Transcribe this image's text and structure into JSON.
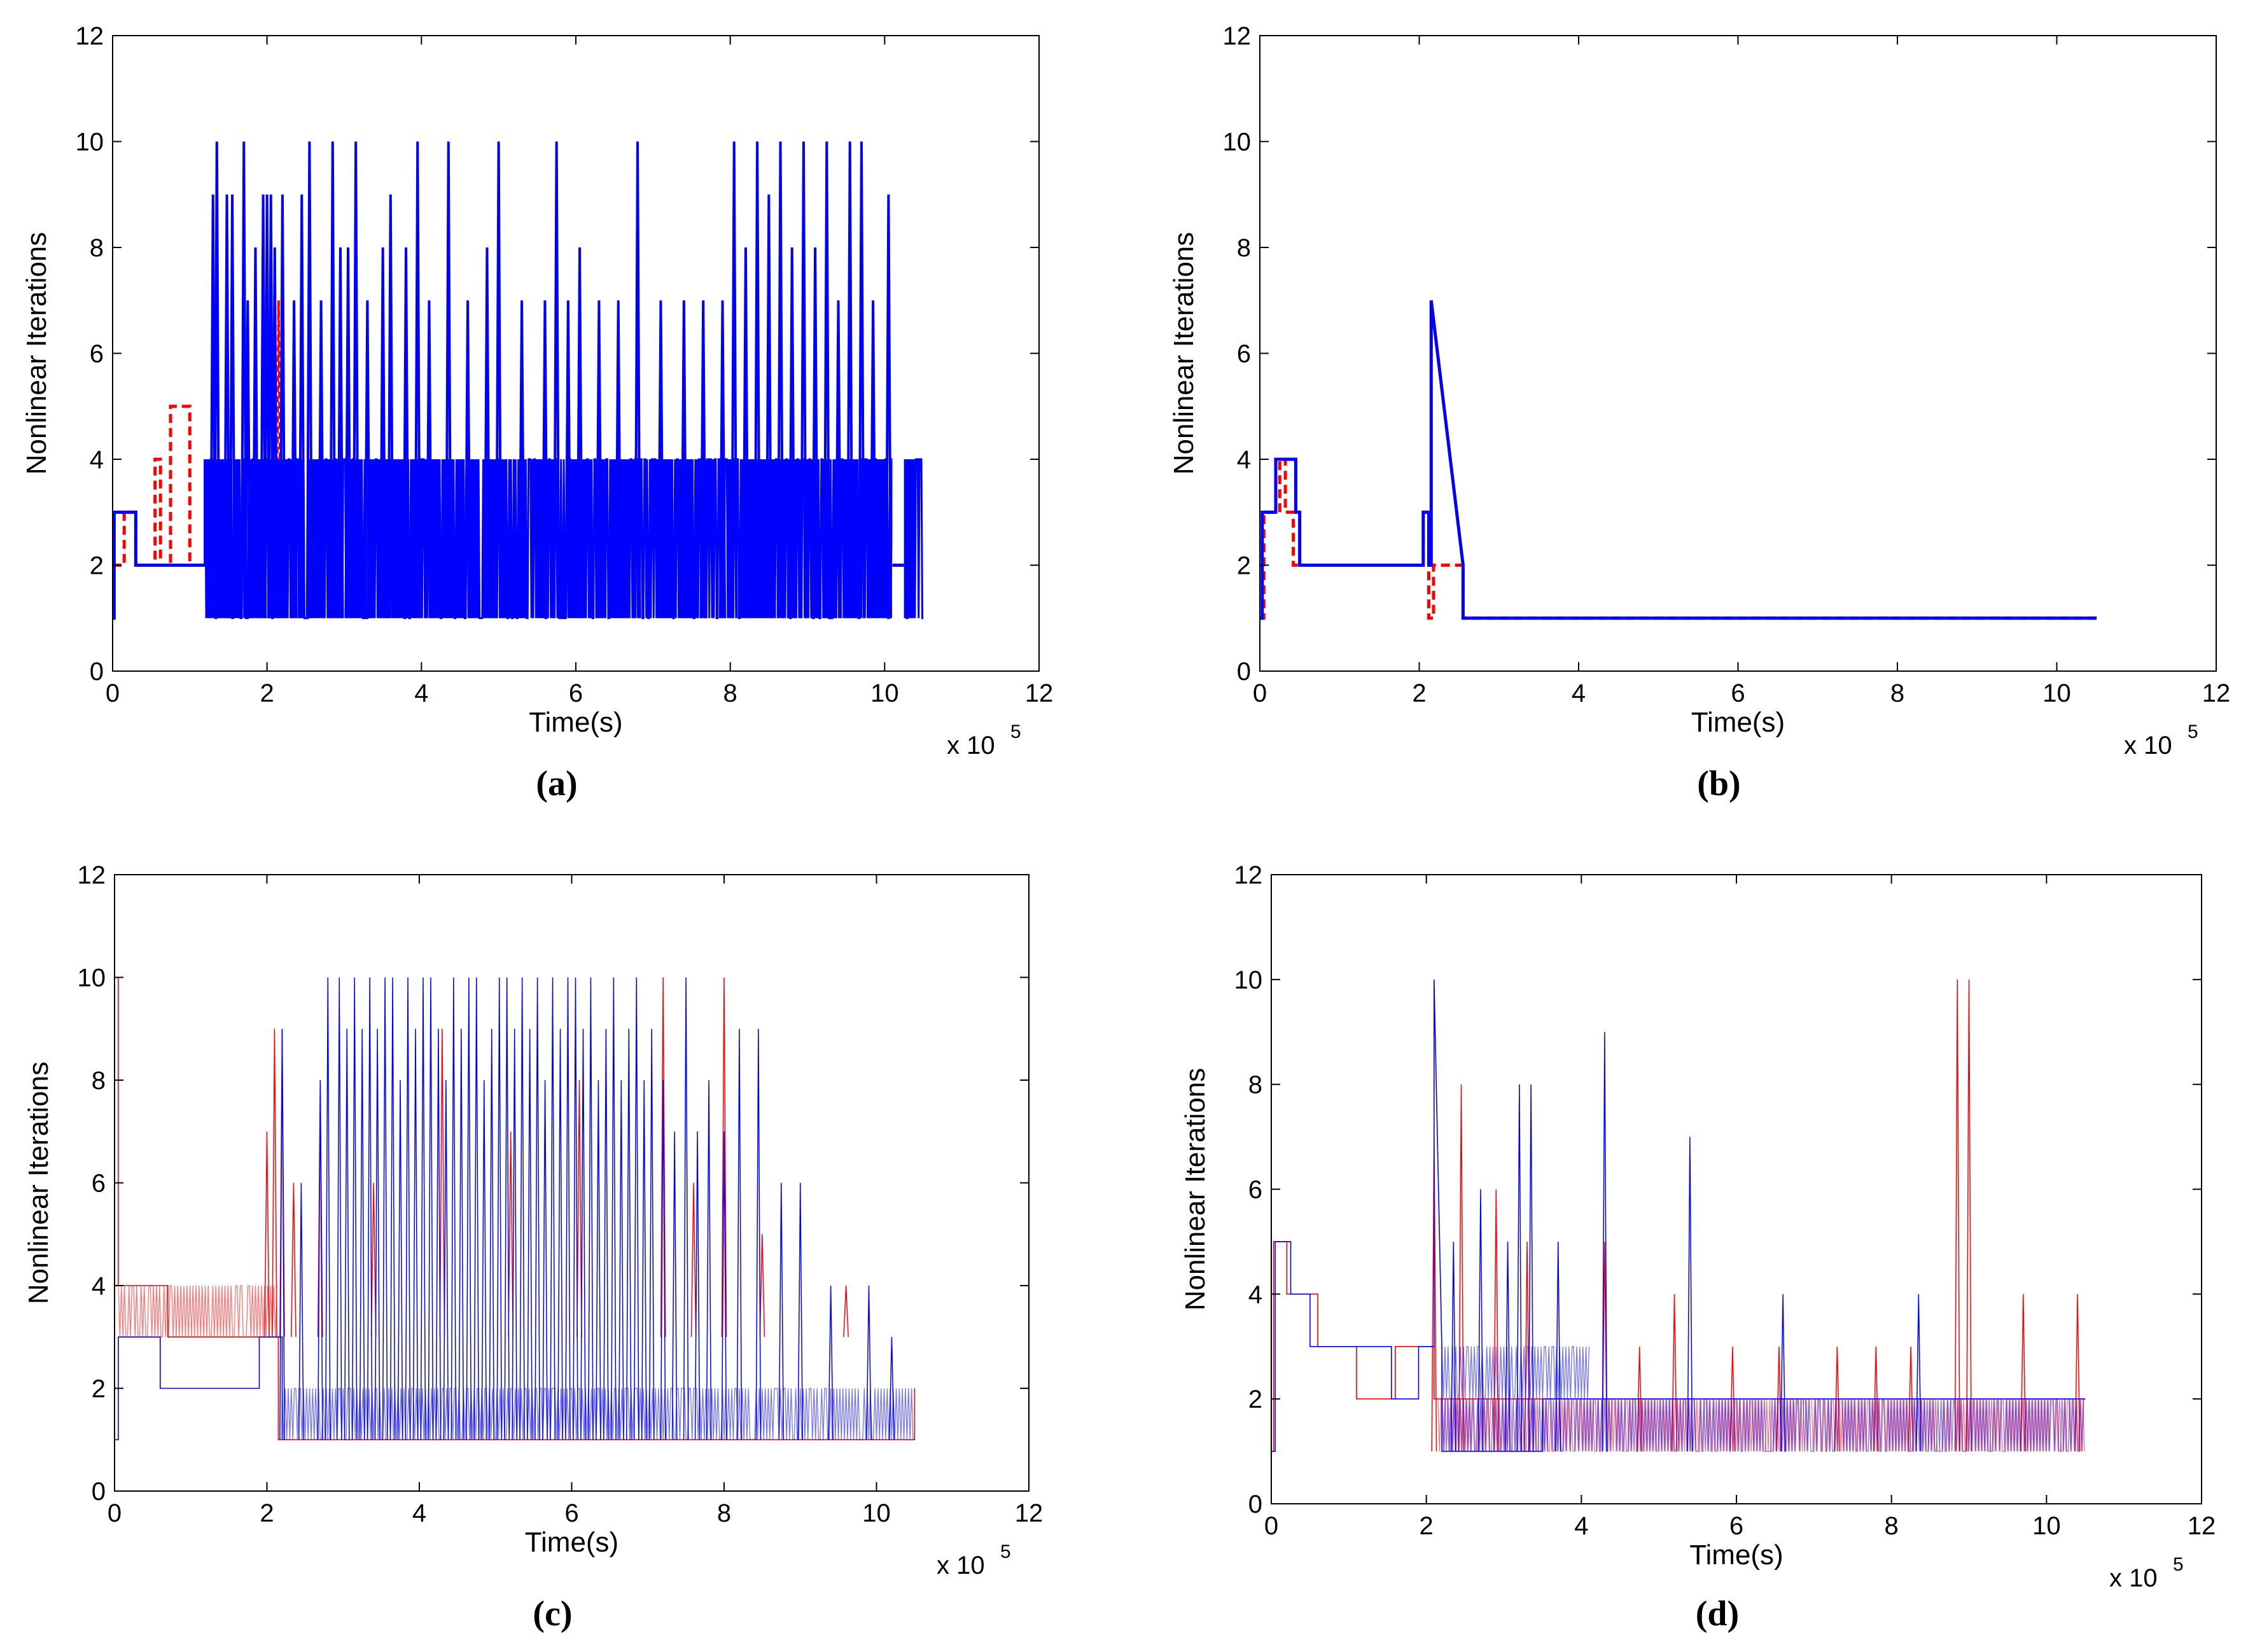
{
  "figure": {
    "background": "#ffffff"
  },
  "panels": [
    {
      "id": "a",
      "caption": "(a)"
    },
    {
      "id": "b",
      "caption": "(b)"
    },
    {
      "id": "c",
      "caption": "(c)"
    },
    {
      "id": "d",
      "caption": "(d)"
    }
  ],
  "chart_data": [
    {
      "panel": "a",
      "type": "line",
      "caption": "(a)",
      "xlabel": "Time(s)",
      "ylabel": "Nonlinear Iterations",
      "x_multiplier": "x 10^5",
      "x_multiplier_base": "x 10",
      "x_multiplier_exp": "5",
      "xlim": [
        0,
        12
      ],
      "ylim": [
        0,
        12
      ],
      "xticks": [
        0,
        2,
        4,
        6,
        8,
        10,
        12
      ],
      "yticks": [
        0,
        2,
        4,
        6,
        8,
        10,
        12
      ],
      "grid": false,
      "series": [
        {
          "name": "red dashed",
          "color": "#ff0000",
          "style": "dashed",
          "width": "thick",
          "x": [
            0,
            0.15,
            0.15,
            0.3,
            0.3,
            0.55,
            0.55,
            0.62,
            0.62,
            0.75,
            0.75,
            1.0,
            1.0,
            1.3
          ],
          "y": [
            2,
            2,
            3,
            3,
            2,
            2,
            4,
            4,
            2,
            2,
            5,
            5,
            2,
            2
          ],
          "spikes": {
            "x": [
              2.15
            ],
            "y": [
              7
            ]
          }
        },
        {
          "name": "blue solid",
          "color": "#0000ff",
          "style": "solid",
          "width": "thick",
          "x": [
            0,
            0.02,
            0.02,
            0.3,
            0.3,
            1.2,
            1.2
          ],
          "y": [
            1,
            1,
            3,
            3,
            2,
            2,
            4
          ],
          "band": {
            "x_start": 1.2,
            "x_end": 10.5,
            "low": 1,
            "high": 4
          },
          "gaps": [
            {
              "x_start": 10.1,
              "x_end": 10.25,
              "y": 2
            }
          ],
          "spikes": {
            "x": [
              1.3,
              1.35,
              1.48,
              1.55,
              1.7,
              1.75,
              1.85,
              1.95,
              2.0,
              2.05,
              2.1,
              2.2,
              2.35,
              2.45,
              2.55,
              2.7,
              2.85,
              2.95,
              3.05,
              3.15,
              3.3,
              3.5,
              3.6,
              3.8,
              3.95,
              4.1,
              4.35,
              4.6,
              4.85,
              5.0,
              5.3,
              5.6,
              5.75,
              5.9,
              6.05,
              6.3,
              6.55,
              6.8,
              7.1,
              7.4,
              7.65,
              7.9,
              8.05,
              8.2,
              8.35,
              8.5,
              8.65,
              8.8,
              8.95,
              9.1,
              9.25,
              9.4,
              9.55,
              9.7,
              9.85,
              10.05,
              10.3
            ],
            "y": [
              9,
              10,
              9,
              9,
              10,
              7,
              8,
              9,
              9,
              9,
              8,
              9,
              7,
              9,
              10,
              7,
              10,
              8,
              8,
              10,
              7,
              8,
              9,
              8,
              10,
              7,
              10,
              7,
              8,
              10,
              7,
              7,
              10,
              7,
              8,
              7,
              7,
              10,
              7,
              7,
              7,
              7,
              10,
              8,
              10,
              9,
              10,
              8,
              10,
              8,
              10,
              7,
              10,
              10,
              7,
              9,
              4
            ]
          }
        }
      ]
    },
    {
      "panel": "b",
      "type": "line",
      "caption": "(b)",
      "xlabel": "Time(s)",
      "ylabel": "Nonlinear Iterations",
      "x_multiplier": "x 10^5",
      "x_multiplier_base": "x 10",
      "x_multiplier_exp": "5",
      "xlim": [
        0,
        12
      ],
      "ylim": [
        0,
        12
      ],
      "xticks": [
        0,
        2,
        4,
        6,
        8,
        10,
        12
      ],
      "yticks": [
        0,
        2,
        4,
        6,
        8,
        10,
        12
      ],
      "grid": false,
      "series": [
        {
          "name": "red dashed",
          "color": "#ff0000",
          "style": "dashed",
          "width": "thick",
          "x": [
            0,
            0.05,
            0.05,
            0.25,
            0.25,
            0.32,
            0.32,
            0.42,
            0.42,
            0.5,
            0.5,
            2.05,
            2.05,
            2.12,
            2.12,
            2.18,
            2.18,
            2.55,
            2.55,
            10.5
          ],
          "y": [
            1,
            1,
            3,
            3,
            4,
            4,
            3,
            3,
            2,
            2,
            2,
            2,
            3,
            3,
            1,
            1,
            2,
            2,
            1,
            1
          ]
        },
        {
          "name": "blue solid",
          "color": "#0000ff",
          "style": "solid",
          "width": "thick",
          "x": [
            0,
            0.03,
            0.03,
            0.2,
            0.2,
            0.27,
            0.27,
            0.45,
            0.45,
            0.5,
            0.5,
            2.05,
            2.05,
            2.12,
            2.12,
            2.15,
            2.15,
            2.55,
            2.55,
            10.5
          ],
          "y": [
            1,
            1,
            3,
            3,
            4,
            4,
            4,
            4,
            3,
            3,
            2,
            2,
            3,
            3,
            2,
            2,
            7,
            2,
            1,
            1
          ]
        }
      ]
    },
    {
      "panel": "c",
      "type": "line",
      "caption": "(c)",
      "xlabel": "Time(s)",
      "ylabel": "Nonlinear Iterations",
      "x_multiplier": "x 10^5",
      "x_multiplier_base": "x 10",
      "x_multiplier_exp": "5",
      "xlim": [
        0,
        12
      ],
      "ylim": [
        0,
        12
      ],
      "xticks": [
        0,
        2,
        4,
        6,
        8,
        10,
        12
      ],
      "yticks": [
        0,
        2,
        4,
        6,
        8,
        10,
        12
      ],
      "grid": false,
      "series": [
        {
          "name": "red thin",
          "color": "#ff0000",
          "style": "solid",
          "width": "thin",
          "x": [
            0,
            0.05,
            0.05,
            0.7,
            0.7,
            2.15,
            2.15,
            10.5,
            10.5
          ],
          "y": [
            10,
            10,
            4,
            4,
            3,
            3,
            1,
            1,
            2
          ],
          "band": {
            "x_start": 0.05,
            "x_end": 2.15,
            "low": 3,
            "high": 4
          },
          "spikes": {
            "x": [
              2.0,
              2.1,
              2.2,
              2.35,
              2.7,
              3.4,
              4.3,
              5.2,
              6.1,
              7.2,
              7.6,
              8.0,
              8.5,
              9.6
            ],
            "y": [
              7,
              9,
              9,
              6,
              8,
              6,
              9,
              7,
              8,
              10,
              6,
              10,
              5,
              4
            ]
          }
        },
        {
          "name": "blue thin",
          "color": "#0000ff",
          "style": "solid",
          "width": "thin",
          "x": [
            0,
            0.05,
            0.05,
            0.6,
            0.6,
            1.9,
            1.9,
            2.2,
            2.2
          ],
          "y": [
            1,
            1,
            3,
            3,
            2,
            2,
            3,
            3,
            1
          ],
          "band": {
            "x_start": 2.2,
            "x_end": 10.5,
            "low": 1,
            "high": 2
          },
          "spikes": {
            "x": [
              2.2,
              2.45,
              2.7,
              2.8,
              2.95,
              3.05,
              3.15,
              3.25,
              3.35,
              3.45,
              3.55,
              3.65,
              3.75,
              3.85,
              3.95,
              4.05,
              4.15,
              4.25,
              4.35,
              4.45,
              4.55,
              4.65,
              4.75,
              4.85,
              4.95,
              5.05,
              5.15,
              5.25,
              5.35,
              5.45,
              5.55,
              5.65,
              5.75,
              5.85,
              5.95,
              6.05,
              6.15,
              6.25,
              6.35,
              6.45,
              6.55,
              6.65,
              6.75,
              6.85,
              6.95,
              7.05,
              7.2,
              7.35,
              7.5,
              7.65,
              7.8,
              8.0,
              8.2,
              8.45,
              8.75,
              9.0,
              9.4,
              9.9,
              10.2
            ],
            "y": [
              9,
              6,
              8,
              10,
              10,
              9,
              10,
              9,
              10,
              9,
              10,
              10,
              8,
              10,
              9,
              10,
              10,
              9,
              8,
              10,
              9,
              10,
              10,
              8,
              9,
              10,
              10,
              9,
              10,
              9,
              10,
              8,
              10,
              9,
              10,
              10,
              9,
              10,
              8,
              9,
              10,
              8,
              9,
              10,
              8,
              9,
              8,
              7,
              10,
              7,
              8,
              7,
              9,
              9,
              6,
              6,
              4,
              4,
              3
            ]
          }
        }
      ]
    },
    {
      "panel": "d",
      "type": "line",
      "caption": "(d)",
      "xlabel": "Time(s)",
      "ylabel": "Nonlinear Iterations",
      "x_multiplier": "x 10^5",
      "x_multiplier_base": "x 10",
      "x_multiplier_exp": "5",
      "xlim": [
        0,
        12
      ],
      "ylim": [
        0,
        12
      ],
      "xticks": [
        0,
        2,
        4,
        6,
        8,
        10,
        12
      ],
      "yticks": [
        0,
        2,
        4,
        6,
        8,
        10,
        12
      ],
      "grid": false,
      "series": [
        {
          "name": "red thin",
          "color": "#ff0000",
          "style": "solid",
          "width": "thin",
          "x": [
            0,
            0.03,
            0.03,
            0.2,
            0.2,
            0.6,
            0.6,
            1.1,
            1.1,
            1.6,
            1.6,
            2.1,
            2.1,
            10.5
          ],
          "y": [
            1,
            1,
            5,
            5,
            4,
            4,
            3,
            3,
            2,
            2,
            3,
            3,
            2,
            2
          ],
          "band": {
            "x_start": 2.15,
            "x_end": 10.5,
            "low": 1,
            "high": 2
          },
          "spikes": {
            "x": [
              2.1,
              2.45,
              2.9,
              3.3,
              4.3,
              4.75,
              5.2,
              5.95,
              6.55,
              7.3,
              7.8,
              8.25,
              8.85,
              9.0,
              9.7,
              10.4
            ],
            "y": [
              7,
              8,
              6,
              5,
              5,
              3,
              4,
              3,
              3,
              3,
              3,
              3,
              10,
              10,
              4,
              4
            ]
          }
        },
        {
          "name": "blue thin",
          "color": "#0000ff",
          "style": "solid",
          "width": "thin",
          "x": [
            0,
            0.05,
            0.05,
            0.25,
            0.25,
            0.5,
            0.5,
            0.9,
            0.9,
            1.55,
            1.55,
            1.9,
            1.9,
            2.1,
            2.1,
            2.2,
            2.2,
            3.5,
            3.5,
            10.5
          ],
          "y": [
            1,
            1,
            5,
            5,
            4,
            4,
            3,
            3,
            3,
            3,
            2,
            2,
            3,
            3,
            10,
            3,
            1,
            1,
            2,
            2
          ],
          "band": {
            "x_start": 2.2,
            "x_end": 10.5,
            "low": 1,
            "high": 2
          },
          "band2": {
            "x_start": 2.2,
            "x_end": 4.1,
            "low": 2,
            "high": 3
          },
          "spikes": {
            "x": [
              2.35,
              2.7,
              3.05,
              3.2,
              3.35,
              3.7,
              4.3,
              5.4,
              6.6,
              8.35
            ],
            "y": [
              5,
              6,
              5,
              8,
              8,
              5,
              9,
              7,
              4,
              4
            ]
          }
        }
      ]
    }
  ]
}
